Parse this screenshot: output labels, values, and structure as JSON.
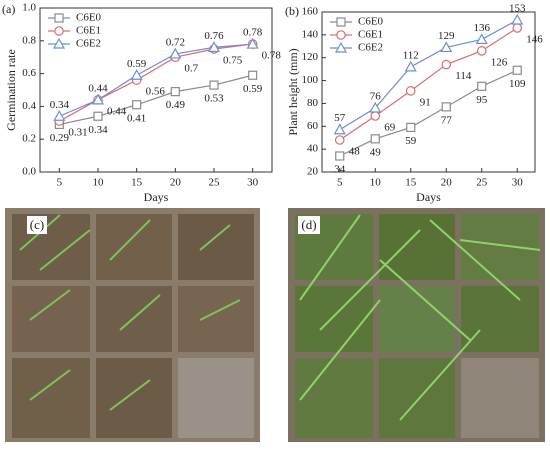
{
  "chart_data": [
    {
      "type": "line",
      "panel_label": "(a)",
      "x_label": "Days",
      "y_label": "Germination rate",
      "x": [
        5,
        10,
        15,
        20,
        25,
        30
      ],
      "xlim": [
        2.5,
        32.5
      ],
      "xticks": [
        5,
        10,
        15,
        20,
        25,
        30
      ],
      "ylim": [
        0,
        1.0
      ],
      "yticks": [
        {
          "value": 0,
          "label": "0.0"
        },
        0.2,
        0.4,
        0.6,
        0.8,
        {
          "value": 1.0,
          "label": "1.0"
        }
      ],
      "legend": "upper-left",
      "series": [
        {
          "name": "C6E0",
          "color": "#8a8a8a",
          "marker": "square",
          "values": [
            0.29,
            0.34,
            0.41,
            0.49,
            0.53,
            0.59
          ]
        },
        {
          "name": "C6E1",
          "color": "#e06a6a",
          "marker": "circle",
          "values": [
            0.31,
            0.44,
            0.56,
            0.7,
            0.75,
            0.78
          ]
        },
        {
          "name": "C6E2",
          "color": "#6a8fd8",
          "marker": "triangle",
          "values": [
            0.34,
            0.44,
            0.59,
            0.72,
            0.76,
            0.78
          ]
        }
      ]
    },
    {
      "type": "line",
      "panel_label": "(b)",
      "x_label": "Days",
      "y_label": "Plant height (mm)",
      "x": [
        5,
        10,
        15,
        20,
        25,
        30
      ],
      "xlim": [
        2.5,
        32.5
      ],
      "xticks": [
        5,
        10,
        15,
        20,
        25,
        30
      ],
      "ylim": [
        20,
        160
      ],
      "yticks": [
        20,
        40,
        60,
        80,
        100,
        120,
        140,
        160
      ],
      "legend": "upper-left",
      "series": [
        {
          "name": "C6E0",
          "color": "#8a8a8a",
          "marker": "square",
          "values": [
            34,
            49,
            59,
            77,
            95,
            109
          ]
        },
        {
          "name": "C6E1",
          "color": "#e06a6a",
          "marker": "circle",
          "values": [
            48,
            69,
            91,
            114,
            126,
            146
          ]
        },
        {
          "name": "C6E2",
          "color": "#6a8fd8",
          "marker": "triangle",
          "values": [
            57,
            76,
            112,
            129,
            136,
            153
          ]
        }
      ]
    }
  ],
  "photos": [
    {
      "label": "(c)"
    },
    {
      "label": "(d)"
    }
  ]
}
